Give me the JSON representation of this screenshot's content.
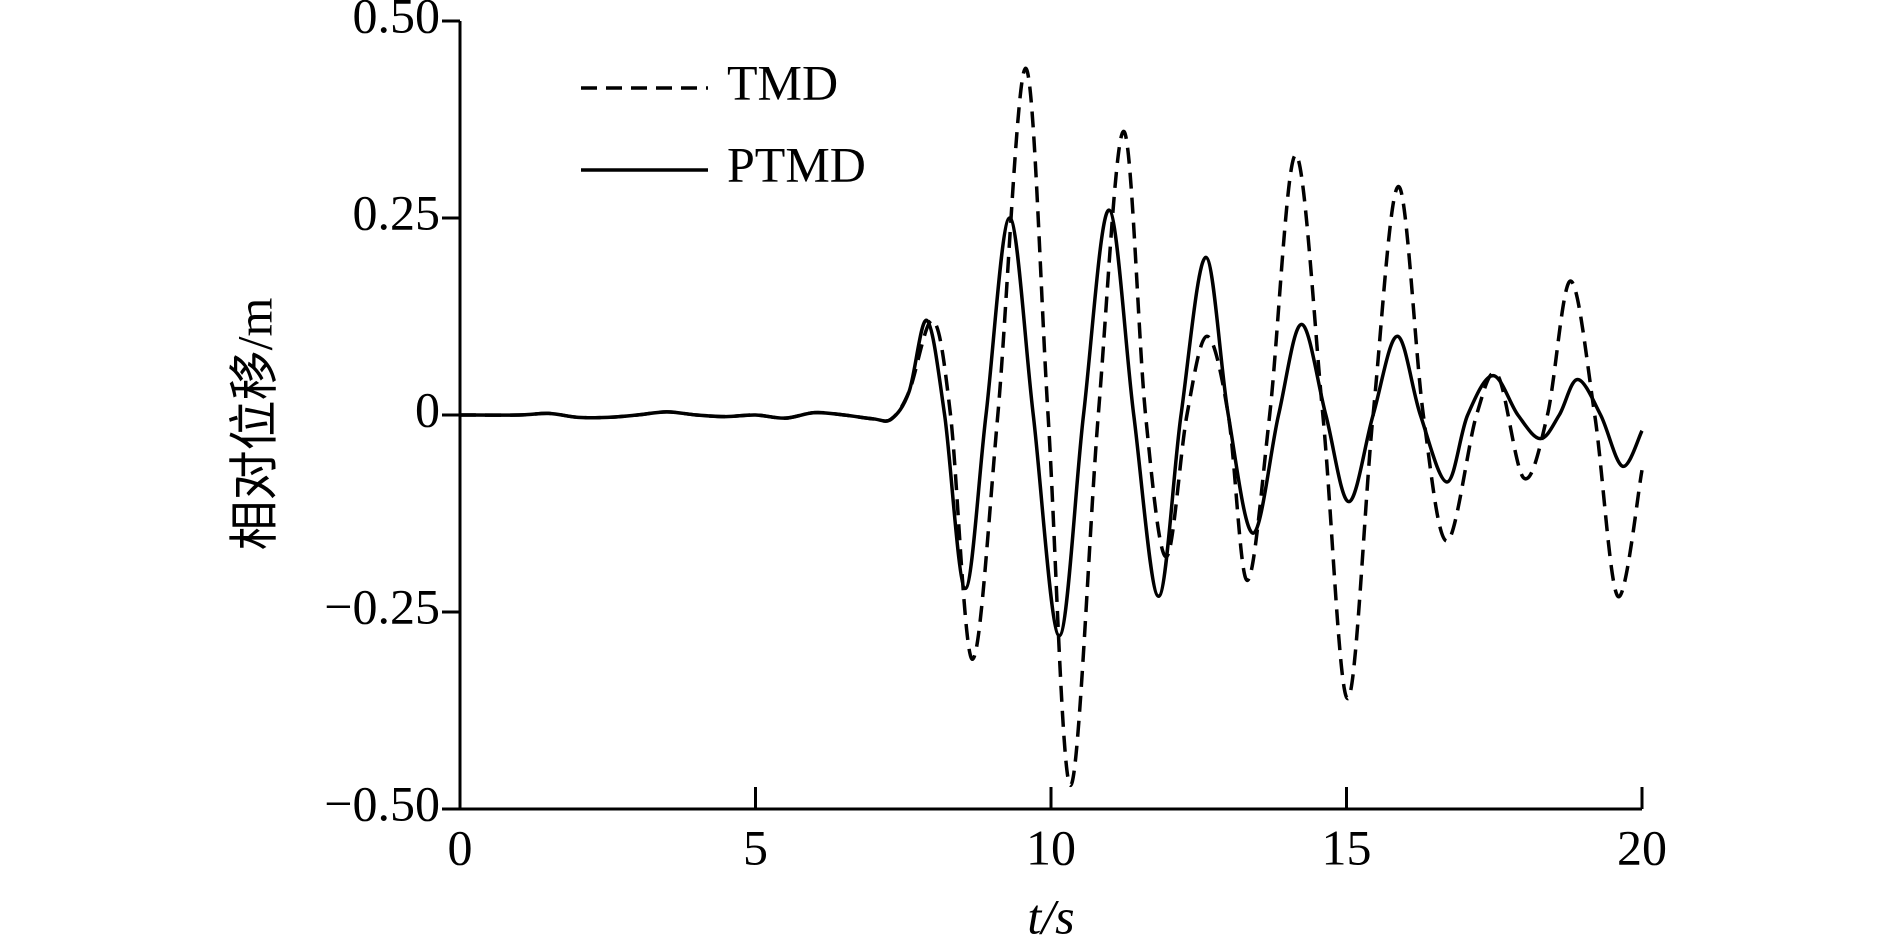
{
  "chart_data": {
    "type": "line",
    "x_label": "t/s",
    "y_label": "相对位移/m",
    "xlim": [
      0,
      20
    ],
    "xticks": [
      0,
      5,
      10,
      15,
      20
    ],
    "ylim": [
      -0.5,
      0.5
    ],
    "yticks": [
      {
        "value": -0.5,
        "label": "−0.50"
      },
      {
        "value": -0.25,
        "label": "−0.25"
      },
      0,
      0.25,
      {
        "value": 0.5,
        "label": "0.50"
      }
    ],
    "legend": "upper-left",
    "series": [
      {
        "name": "TMD",
        "color": "#000000",
        "dash": "dashed",
        "x": [
          0,
          1,
          1.5,
          2,
          2.5,
          3,
          3.5,
          4,
          4.5,
          5,
          5.5,
          6,
          6.5,
          7,
          7.3,
          7.6,
          8.0,
          8.3,
          8.67,
          9.1,
          9.57,
          9.95,
          10.33,
          10.8,
          11.23,
          11.6,
          11.95,
          12.3,
          12.64,
          13.0,
          13.32,
          13.7,
          14.14,
          14.6,
          15.02,
          15.45,
          15.88,
          16.3,
          16.7,
          17.2,
          17.56,
          18.0,
          18.4,
          18.79,
          19.2,
          19.59,
          20.0
        ],
        "values": [
          0,
          0,
          0.002,
          -0.003,
          -0.003,
          0,
          0.004,
          0,
          -0.002,
          0,
          -0.004,
          0.003,
          0,
          -0.005,
          -0.005,
          0.03,
          0.12,
          0,
          -0.31,
          0,
          0.44,
          0,
          -0.47,
          0,
          0.36,
          0,
          -0.18,
          0,
          0.1,
          0,
          -0.21,
          0,
          0.33,
          0,
          -0.36,
          0,
          0.29,
          0,
          -0.16,
          0,
          0.05,
          -0.08,
          0,
          0.17,
          0,
          -0.23,
          -0.07
        ]
      },
      {
        "name": "PTMD",
        "color": "#000000",
        "dash": "solid",
        "x": [
          0,
          1,
          1.5,
          2,
          2.5,
          3,
          3.5,
          4,
          4.5,
          5,
          5.5,
          6,
          6.5,
          7,
          7.3,
          7.6,
          7.9,
          8.2,
          8.55,
          8.9,
          9.3,
          9.7,
          10.14,
          10.55,
          10.98,
          11.4,
          11.82,
          12.2,
          12.62,
          13.0,
          13.42,
          13.85,
          14.24,
          14.65,
          15.04,
          15.45,
          15.86,
          16.25,
          16.7,
          17.05,
          17.48,
          17.9,
          18.28,
          18.6,
          18.91,
          19.3,
          19.67,
          20.0
        ],
        "values": [
          0,
          0,
          0.002,
          -0.003,
          -0.003,
          0,
          0.004,
          0,
          -0.002,
          0,
          -0.004,
          0.003,
          0,
          -0.005,
          -0.005,
          0.03,
          0.12,
          0,
          -0.22,
          0,
          0.25,
          0,
          -0.28,
          0,
          0.26,
          0,
          -0.23,
          0,
          0.2,
          0,
          -0.15,
          0,
          0.115,
          0,
          -0.11,
          0,
          0.1,
          0,
          -0.085,
          0,
          0.05,
          0,
          -0.03,
          0,
          0.045,
          0,
          -0.065,
          -0.02
        ]
      }
    ]
  }
}
